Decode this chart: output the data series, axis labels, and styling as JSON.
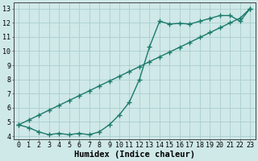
{
  "line1_x": [
    0,
    1,
    2,
    3,
    4,
    5,
    6,
    7,
    8,
    9,
    10,
    11,
    12,
    13,
    14,
    15,
    16,
    17,
    18,
    19,
    20,
    21,
    22,
    23
  ],
  "line1_y": [
    4.8,
    4.6,
    4.3,
    4.1,
    4.2,
    4.1,
    4.2,
    4.1,
    4.3,
    4.8,
    5.5,
    6.4,
    8.0,
    10.3,
    12.1,
    11.9,
    11.95,
    11.9,
    12.1,
    12.3,
    12.5,
    12.5,
    12.1,
    13.0
  ],
  "line2_x": [
    0,
    1,
    2,
    3,
    4,
    5,
    6,
    7,
    8,
    9,
    10,
    11,
    12,
    13,
    14,
    15,
    16,
    17,
    18,
    19,
    20,
    21,
    22,
    23
  ],
  "line2_y": [
    4.8,
    5.14,
    5.48,
    5.83,
    6.17,
    6.51,
    6.85,
    7.19,
    7.54,
    7.88,
    8.22,
    8.56,
    8.9,
    9.25,
    9.59,
    9.93,
    10.27,
    10.61,
    10.96,
    11.3,
    11.64,
    11.98,
    12.32,
    13.0
  ],
  "line_color": "#1a7a6a",
  "marker": "+",
  "markersize": 4,
  "linewidth": 1.0,
  "markeredgewidth": 1.0,
  "xlabel": "Humidex (Indice chaleur)",
  "xlim": [
    -0.5,
    23.5
  ],
  "ylim": [
    3.8,
    13.4
  ],
  "yticks": [
    4,
    5,
    6,
    7,
    8,
    9,
    10,
    11,
    12,
    13
  ],
  "xticks": [
    0,
    1,
    2,
    3,
    4,
    5,
    6,
    7,
    8,
    9,
    10,
    11,
    12,
    13,
    14,
    15,
    16,
    17,
    18,
    19,
    20,
    21,
    22,
    23
  ],
  "bg_color": "#cfe8e8",
  "grid_color": "#aacece",
  "tick_fontsize": 6.0,
  "xlabel_fontsize": 7.5
}
